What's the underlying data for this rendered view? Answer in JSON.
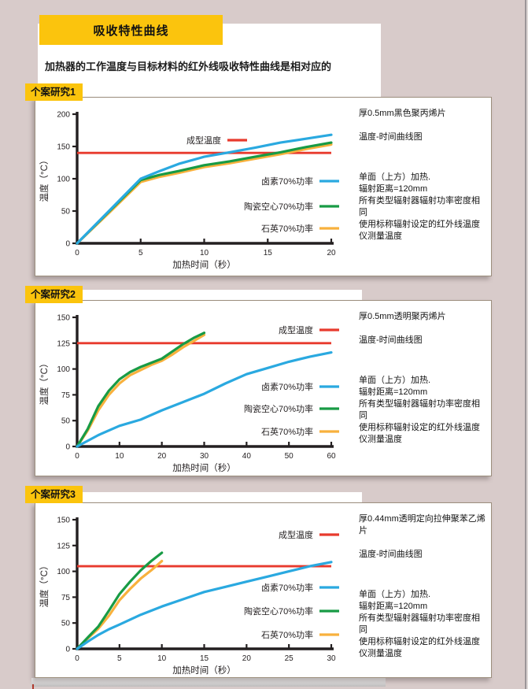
{
  "page": {
    "title": "吸收特性曲线",
    "subtitle": "加热器的工作温度与目标材料的红外线吸收特性曲线是相对应的"
  },
  "colors": {
    "background": "#d8cbca",
    "banner_yellow": "#fbc40d",
    "panel_border": "#9c8e7d",
    "threshold_red": "#e83a2d",
    "halogen_blue": "#2aa9e0",
    "ceramic_green": "#189b45",
    "quartz_orange": "#f8b13d",
    "axis_black": "#231f20"
  },
  "sections": [
    {
      "label": "个案研究1",
      "notes": {
        "material": "厚0.5mm黑色聚丙烯片",
        "curve": "温度-时间曲线图",
        "setup": [
          "单面（上方）加热.",
          "辐射距离=120mm",
          "所有类型辐射器辐射功率密度相同",
          "使用标称辐射设定的红外线温度仪测量温度"
        ]
      }
    },
    {
      "label": "个案研究2",
      "notes": {
        "material": "厚0.5mm透明聚丙烯片",
        "curve": "温度-时间曲线图",
        "setup": [
          "单面（上方）加热.",
          "辐射距离=120mm",
          "所有类型辐射器辐射功率密度相同",
          "使用标称辐射设定的红外线温度仪测量温度"
        ]
      }
    },
    {
      "label": "个案研究3",
      "notes": {
        "material": "厚0.44mm透明定向拉伸聚苯乙烯片",
        "curve": "温度-时间曲线图",
        "setup": [
          "单面（上方）加热.",
          "辐射距离=120mm",
          "所有类型辐射器辐射功率密度相同",
          "使用标称辐射设定的红外线温度仪测量温度"
        ]
      }
    }
  ],
  "chart_data": [
    {
      "type": "line",
      "title": "温度-时间曲线图 (个案研究1)",
      "xlabel": "加热时间（秒）",
      "ylabel": "温度（°C）",
      "x_ticks": [
        0,
        5,
        10,
        15,
        20
      ],
      "y_ticks": [
        0,
        50,
        100,
        150,
        200
      ],
      "xlim": [
        0,
        20
      ],
      "ylim": [
        0,
        200
      ],
      "grid": false,
      "threshold": {
        "label": "成型温度",
        "value": 140,
        "color": "#e83a2d"
      },
      "series": [
        {
          "name": "卤素70%功率",
          "color": "#2aa9e0",
          "points": [
            [
              0,
              0
            ],
            [
              2.5,
              50
            ],
            [
              5,
              100
            ],
            [
              6.5,
              112
            ],
            [
              8,
              123
            ],
            [
              10,
              134
            ],
            [
              12,
              141
            ],
            [
              14,
              148
            ],
            [
              16,
              156
            ],
            [
              18,
              162
            ],
            [
              20,
              168
            ]
          ]
        },
        {
          "name": "陶瓷空心70%功率",
          "color": "#189b45",
          "points": [
            [
              0,
              0
            ],
            [
              2.5,
              49
            ],
            [
              5,
              98
            ],
            [
              6.5,
              106
            ],
            [
              8,
              112
            ],
            [
              10,
              121
            ],
            [
              12,
              127
            ],
            [
              14,
              134
            ],
            [
              16,
              141
            ],
            [
              18,
              149
            ],
            [
              20,
              156
            ]
          ]
        },
        {
          "name": "石英70%功率",
          "color": "#f8b13d",
          "points": [
            [
              0,
              0
            ],
            [
              2.5,
              47
            ],
            [
              5,
              95
            ],
            [
              6.5,
              103
            ],
            [
              8,
              109
            ],
            [
              10,
              118
            ],
            [
              12,
              124
            ],
            [
              14,
              131
            ],
            [
              16,
              138
            ],
            [
              18,
              146
            ],
            [
              20,
              153
            ]
          ]
        }
      ]
    },
    {
      "type": "line",
      "title": "温度-时间曲线图 (个案研究2)",
      "xlabel": "加热时间（秒）",
      "ylabel": "温度（°C）",
      "x_ticks": [
        0,
        10,
        20,
        30,
        40,
        50,
        60
      ],
      "y_ticks": [
        0,
        50,
        75,
        100,
        125,
        150
      ],
      "xlim": [
        0,
        60
      ],
      "ylim": [
        0,
        150
      ],
      "grid": false,
      "y_ticks_equally_spaced": true,
      "threshold": {
        "label": "成型温度",
        "value": 125,
        "color": "#e83a2d"
      },
      "series": [
        {
          "name": "卤素70%功率",
          "color": "#2aa9e0",
          "points": [
            [
              0,
              0
            ],
            [
              5,
              22
            ],
            [
              10,
              40
            ],
            [
              15,
              51
            ],
            [
              20,
              60
            ],
            [
              25,
              68
            ],
            [
              30,
              76
            ],
            [
              35,
              86
            ],
            [
              40,
              95
            ],
            [
              45,
              101
            ],
            [
              50,
              107
            ],
            [
              55,
              112
            ],
            [
              60,
              116
            ]
          ]
        },
        {
          "name": "陶瓷空心70%功率",
          "color": "#189b45",
          "points": [
            [
              0,
              0
            ],
            [
              2.5,
              34
            ],
            [
              5,
              64
            ],
            [
              7.5,
              79
            ],
            [
              10,
              90
            ],
            [
              12.5,
              97
            ],
            [
              15,
              102
            ],
            [
              17.5,
              106
            ],
            [
              20,
              110
            ],
            [
              22.5,
              117
            ],
            [
              25,
              124
            ],
            [
              27.5,
              130
            ],
            [
              30,
              135
            ]
          ]
        },
        {
          "name": "石英70%功率",
          "color": "#f8b13d",
          "points": [
            [
              0,
              0
            ],
            [
              2.5,
              31
            ],
            [
              5,
              60
            ],
            [
              7.5,
              75
            ],
            [
              10,
              86
            ],
            [
              12.5,
              94
            ],
            [
              15,
              99
            ],
            [
              17.5,
              104
            ],
            [
              20,
              108
            ],
            [
              22.5,
              114
            ],
            [
              25,
              121
            ],
            [
              27.5,
              127
            ],
            [
              30,
              133
            ]
          ]
        }
      ]
    },
    {
      "type": "line",
      "title": "温度-时间曲线图 (个案研究3)",
      "xlabel": "加热时间（秒）",
      "ylabel": "温度（°C）",
      "x_ticks": [
        0,
        5,
        10,
        15,
        20,
        25,
        30
      ],
      "y_ticks": [
        0,
        50,
        75,
        100,
        125,
        150
      ],
      "xlim": [
        0,
        30
      ],
      "ylim": [
        0,
        150
      ],
      "grid": false,
      "y_ticks_equally_spaced": true,
      "threshold": {
        "label": "成型温度",
        "value": 105,
        "color": "#e83a2d"
      },
      "series": [
        {
          "name": "卤素70%功率",
          "color": "#2aa9e0",
          "points": [
            [
              0,
              0
            ],
            [
              1.25,
              14
            ],
            [
              2.5,
              27
            ],
            [
              3.75,
              38
            ],
            [
              5,
              47
            ],
            [
              7.5,
              58
            ],
            [
              10,
              66
            ],
            [
              12.5,
              73
            ],
            [
              15,
              80
            ],
            [
              17.5,
              85
            ],
            [
              20,
              90
            ],
            [
              22.5,
              95
            ],
            [
              25,
              100
            ],
            [
              27.5,
              105
            ],
            [
              30,
              109
            ]
          ]
        },
        {
          "name": "陶瓷空心70%功率",
          "color": "#189b45",
          "points": [
            [
              0,
              0
            ],
            [
              1.25,
              22
            ],
            [
              2.5,
              43
            ],
            [
              3.75,
              62
            ],
            [
              5,
              78
            ],
            [
              6.25,
              90
            ],
            [
              7.5,
              101
            ],
            [
              8.75,
              110
            ],
            [
              10,
              118
            ]
          ]
        },
        {
          "name": "石英70%功率",
          "color": "#f8b13d",
          "points": [
            [
              0,
              0
            ],
            [
              1.25,
              20
            ],
            [
              2.5,
              39
            ],
            [
              3.75,
              57
            ],
            [
              5,
              72
            ],
            [
              6.25,
              83
            ],
            [
              7.5,
              93
            ],
            [
              8.75,
              101
            ],
            [
              10,
              110
            ]
          ]
        }
      ]
    }
  ]
}
